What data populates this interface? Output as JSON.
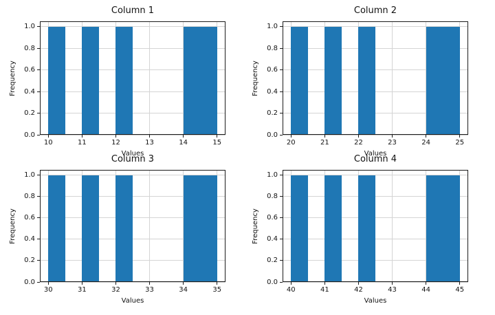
{
  "figure": {
    "background": "#ffffff",
    "bar_color": "#1f77b4",
    "grid_color": "#d4d4d4",
    "spine_color": "#1a1a1a",
    "text_color": "#111111"
  },
  "chart_data": [
    {
      "type": "bar",
      "chart_kind": "histogram",
      "title": "Column 1",
      "xlabel": "Values",
      "ylabel": "Frequency",
      "xlim": [
        9.75,
        15.25
      ],
      "ylim": [
        0,
        1.05
      ],
      "xticks": [
        "10",
        "11",
        "12",
        "13",
        "14",
        "15"
      ],
      "yticks": [
        "0.0",
        "0.2",
        "0.4",
        "0.6",
        "0.8",
        "1.0"
      ],
      "grid": true,
      "legend": false,
      "bars": [
        {
          "from": 10.0,
          "to": 10.5,
          "frequency": 1
        },
        {
          "from": 11.0,
          "to": 11.5,
          "frequency": 1
        },
        {
          "from": 12.0,
          "to": 12.5,
          "frequency": 1
        },
        {
          "from": 14.0,
          "to": 15.0,
          "frequency": 1
        }
      ]
    },
    {
      "type": "bar",
      "chart_kind": "histogram",
      "title": "Column 2",
      "xlabel": "Values",
      "ylabel": "Frequency",
      "xlim": [
        19.75,
        25.25
      ],
      "ylim": [
        0,
        1.05
      ],
      "xticks": [
        "20",
        "21",
        "22",
        "23",
        "24",
        "25"
      ],
      "yticks": [
        "0.0",
        "0.2",
        "0.4",
        "0.6",
        "0.8",
        "1.0"
      ],
      "grid": true,
      "legend": false,
      "bars": [
        {
          "from": 20.0,
          "to": 20.5,
          "frequency": 1
        },
        {
          "from": 21.0,
          "to": 21.5,
          "frequency": 1
        },
        {
          "from": 22.0,
          "to": 22.5,
          "frequency": 1
        },
        {
          "from": 24.0,
          "to": 25.0,
          "frequency": 1
        }
      ]
    },
    {
      "type": "bar",
      "chart_kind": "histogram",
      "title": "Column 3",
      "xlabel": "Values",
      "ylabel": "Frequency",
      "xlim": [
        29.75,
        35.25
      ],
      "ylim": [
        0,
        1.05
      ],
      "xticks": [
        "30",
        "31",
        "32",
        "33",
        "34",
        "35"
      ],
      "yticks": [
        "0.0",
        "0.2",
        "0.4",
        "0.6",
        "0.8",
        "1.0"
      ],
      "grid": true,
      "legend": false,
      "bars": [
        {
          "from": 30.0,
          "to": 30.5,
          "frequency": 1
        },
        {
          "from": 31.0,
          "to": 31.5,
          "frequency": 1
        },
        {
          "from": 32.0,
          "to": 32.5,
          "frequency": 1
        },
        {
          "from": 34.0,
          "to": 35.0,
          "frequency": 1
        }
      ]
    },
    {
      "type": "bar",
      "chart_kind": "histogram",
      "title": "Column 4",
      "xlabel": "Values",
      "ylabel": "Frequency",
      "xlim": [
        39.75,
        45.25
      ],
      "ylim": [
        0,
        1.05
      ],
      "xticks": [
        "40",
        "41",
        "42",
        "43",
        "44",
        "45"
      ],
      "yticks": [
        "0.0",
        "0.2",
        "0.4",
        "0.6",
        "0.8",
        "1.0"
      ],
      "grid": true,
      "legend": false,
      "bars": [
        {
          "from": 40.0,
          "to": 40.5,
          "frequency": 1
        },
        {
          "from": 41.0,
          "to": 41.5,
          "frequency": 1
        },
        {
          "from": 42.0,
          "to": 42.5,
          "frequency": 1
        },
        {
          "from": 44.0,
          "to": 45.0,
          "frequency": 1
        }
      ]
    }
  ]
}
